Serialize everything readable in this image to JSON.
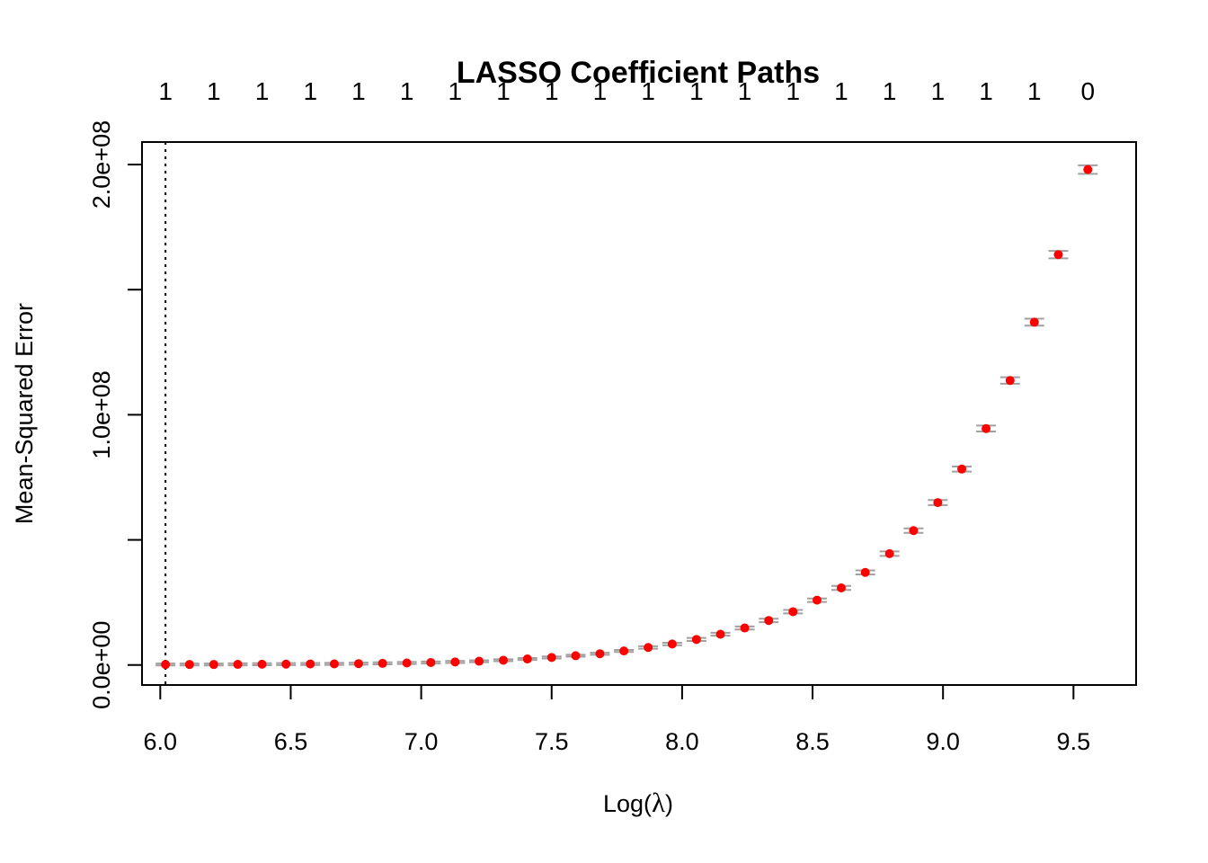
{
  "chart_data": {
    "type": "scatter",
    "title": "LASSO Coefficient Paths",
    "xlabel_prefix": "Log(",
    "xlabel_symbol": "λ",
    "xlabel_suffix": ")",
    "ylabel": "Mean-Squared Error",
    "xlim": [
      5.93,
      9.74
    ],
    "ylim": [
      -8000000,
      209000000
    ],
    "x_ticks": [
      6.0,
      6.5,
      7.0,
      7.5,
      8.0,
      8.5,
      9.0,
      9.5
    ],
    "x_tick_labels": [
      "6.0",
      "6.5",
      "7.0",
      "7.5",
      "8.0",
      "8.5",
      "9.0",
      "9.5"
    ],
    "y_ticks": [
      0,
      50000000,
      100000000,
      150000000,
      200000000
    ],
    "y_tick_labels": [
      "0.0e+00",
      "",
      "1.0e+08",
      "",
      "2.0e+08"
    ],
    "top_axis": {
      "x": [
        6.02,
        6.205,
        6.39,
        6.575,
        6.76,
        6.945,
        7.13,
        7.315,
        7.5,
        7.685,
        7.87,
        8.055,
        8.24,
        8.425,
        8.61,
        8.795,
        8.98,
        9.165,
        9.35,
        9.555
      ],
      "labels": [
        "1",
        "1",
        "1",
        "1",
        "1",
        "1",
        "1",
        "1",
        "1",
        "1",
        "1",
        "1",
        "1",
        "1",
        "1",
        "1",
        "1",
        "1",
        "1",
        "0"
      ]
    },
    "vline_x": 6.02,
    "point_color": "#ff0000",
    "error_bar_color": "#a0a0a0",
    "series": [
      {
        "x": [
          6.02,
          6.112,
          6.205,
          6.297,
          6.39,
          6.482,
          6.575,
          6.667,
          6.76,
          6.852,
          6.945,
          7.037,
          7.13,
          7.222,
          7.315,
          7.407,
          7.5,
          7.592,
          7.685,
          7.777,
          7.87,
          7.962,
          8.055,
          8.147,
          8.24,
          8.332,
          8.425,
          8.517,
          8.61,
          8.702,
          8.795,
          8.887,
          8.98,
          9.072,
          9.165,
          9.257,
          9.35,
          9.442,
          9.555
        ],
        "y": [
          200000,
          200000,
          200000,
          250000,
          300000,
          350000,
          400000,
          450000,
          550000,
          650000,
          800000,
          1000000,
          1200000,
          1500000,
          1900000,
          2400000,
          3000000,
          3700000,
          4500000,
          5600000,
          7000000,
          8400000,
          10200000,
          12300000,
          14800000,
          17800000,
          21300000,
          25900000,
          30800000,
          37000000,
          44500000,
          53700000,
          64900000,
          78300000,
          94500000,
          113700000,
          137000000,
          164000000,
          198000000
        ],
        "err": [
          400000,
          400000,
          400000,
          400000,
          400000,
          400000,
          400000,
          400000,
          400000,
          400000,
          400000,
          400000,
          400000,
          400000,
          400000,
          400000,
          400000,
          400000,
          400000,
          400000,
          500000,
          500000,
          600000,
          600000,
          600000,
          700000,
          700000,
          700000,
          800000,
          800000,
          900000,
          900000,
          1000000,
          1000000,
          1200000,
          1300000,
          1400000,
          1500000,
          1700000
        ]
      }
    ]
  }
}
